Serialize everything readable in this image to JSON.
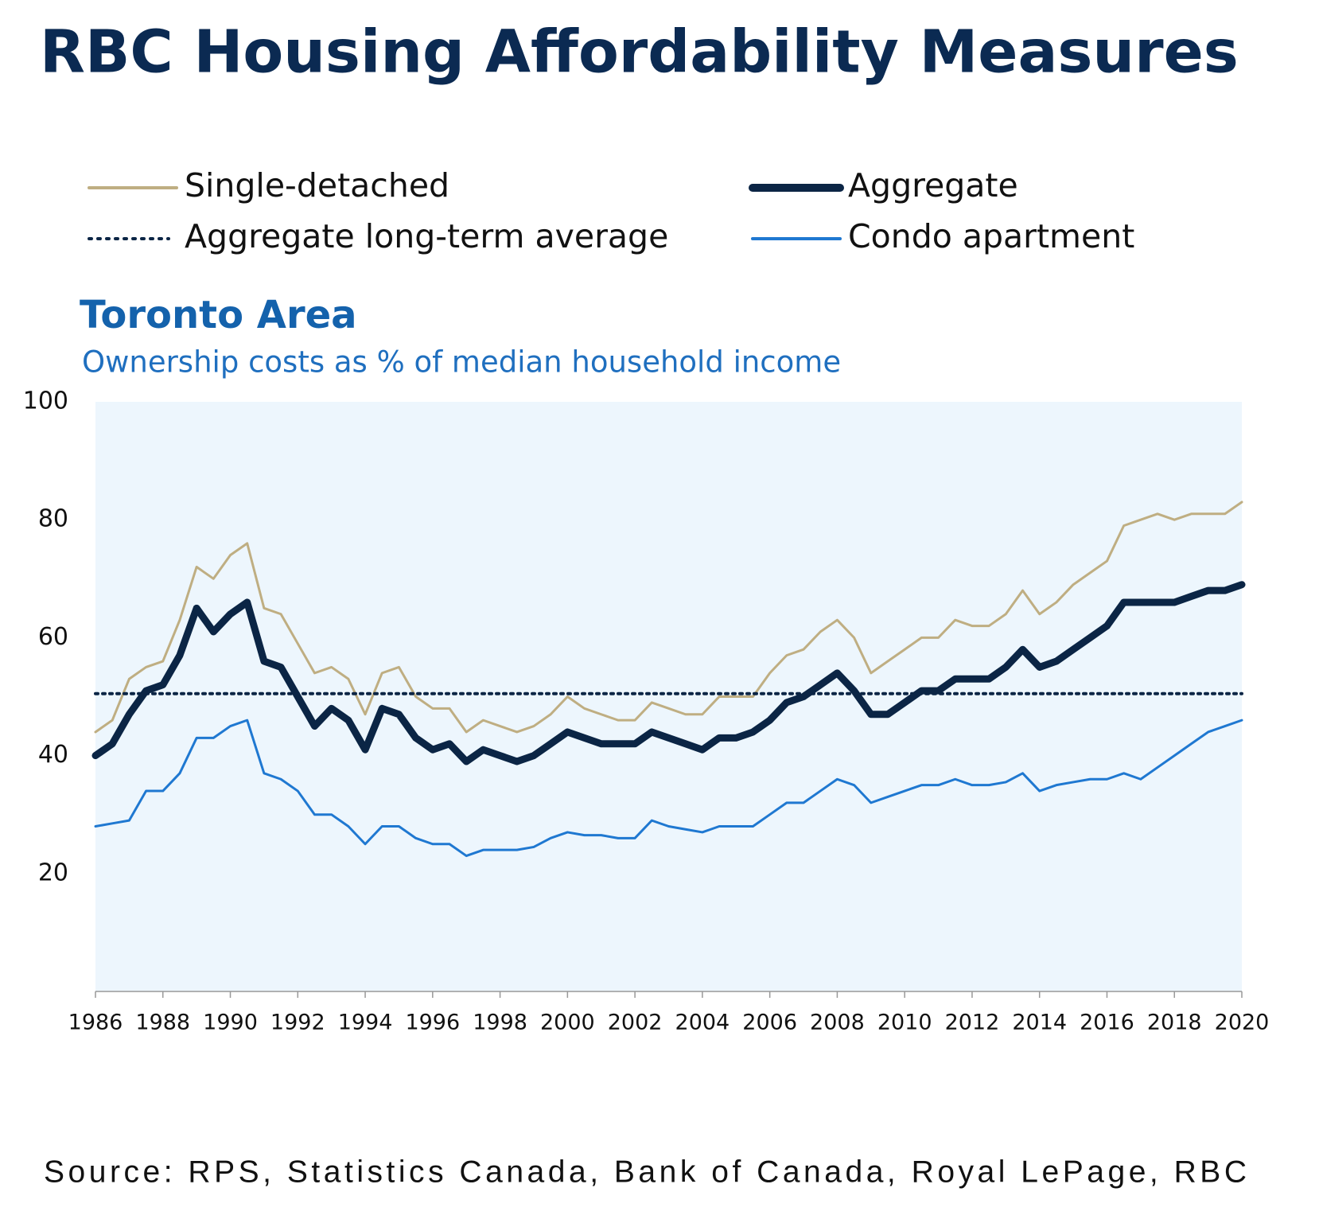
{
  "chart_data": {
    "type": "line",
    "title": "RBC Housing Affordability Measures",
    "subtitle": "Toronto Area",
    "y_axis_label": "Ownership costs as % of median household income",
    "source": "Source: RPS, Statistics Canada, Bank of Canada, Royal LePage, RBC",
    "x": [
      1986,
      1986.5,
      1987,
      1987.5,
      1988,
      1988.5,
      1989,
      1989.5,
      1990,
      1990.5,
      1991,
      1991.5,
      1992,
      1992.5,
      1993,
      1993.5,
      1994,
      1994.5,
      1995,
      1995.5,
      1996,
      1996.5,
      1997,
      1997.5,
      1998,
      1998.5,
      1999,
      1999.5,
      2000,
      2000.5,
      2001,
      2001.5,
      2002,
      2002.5,
      2003,
      2003.5,
      2004,
      2004.5,
      2005,
      2005.5,
      2006,
      2006.5,
      2007,
      2007.5,
      2008,
      2008.5,
      2009,
      2009.5,
      2010,
      2010.5,
      2011,
      2011.5,
      2012,
      2012.5,
      2013,
      2013.5,
      2014,
      2014.5,
      2015,
      2015.5,
      2016,
      2016.5,
      2017,
      2017.5,
      2018,
      2018.5,
      2019,
      2019.5,
      2020
    ],
    "series": [
      {
        "name": "Single-detached",
        "color": "#bfae82",
        "values": [
          44,
          46,
          53,
          55,
          56,
          63,
          72,
          70,
          74,
          76,
          65,
          64,
          59,
          54,
          55,
          53,
          47,
          54,
          55,
          50,
          48,
          48,
          44,
          46,
          45,
          44,
          45,
          47,
          50,
          48,
          47,
          46,
          46,
          49,
          48,
          47,
          47,
          50,
          50,
          50,
          54,
          57,
          58,
          61,
          63,
          60,
          54,
          56,
          58,
          60,
          60,
          63,
          62,
          62,
          64,
          68,
          64,
          66,
          69,
          71,
          73,
          79,
          80,
          81,
          80,
          81,
          81,
          81,
          83
        ]
      },
      {
        "name": "Condo apartment",
        "color": "#1f78d1",
        "values": [
          28,
          28.5,
          29,
          34,
          34,
          37,
          43,
          43,
          45,
          46,
          37,
          36,
          34,
          30,
          30,
          28,
          25,
          28,
          28,
          26,
          25,
          25,
          23,
          24,
          24,
          24,
          24.5,
          26,
          27,
          26.5,
          26.5,
          26,
          26,
          29,
          28,
          27.5,
          27,
          28,
          28,
          28,
          30,
          32,
          32,
          34,
          36,
          35,
          32,
          33,
          34,
          35,
          35,
          36,
          35,
          35,
          35.5,
          37,
          34,
          35,
          35.5,
          36,
          36,
          37,
          36,
          38,
          40,
          42,
          44,
          45,
          46
        ]
      },
      {
        "name": "Aggregate",
        "color": "#0b2545",
        "values": [
          40,
          42,
          47,
          51,
          52,
          57,
          65,
          61,
          64,
          66,
          56,
          55,
          50,
          45,
          48,
          46,
          41,
          48,
          47,
          43,
          41,
          42,
          39,
          41,
          40,
          39,
          40,
          42,
          44,
          43,
          42,
          42,
          42,
          44,
          43,
          42,
          41,
          43,
          43,
          44,
          46,
          49,
          50,
          52,
          54,
          51,
          47,
          47,
          49,
          51,
          51,
          53,
          53,
          53,
          55,
          58,
          55,
          56,
          58,
          60,
          62,
          66,
          66,
          66,
          66,
          67,
          68,
          68,
          69
        ]
      }
    ],
    "reference_lines": [
      {
        "name": "Aggregate long-term average",
        "value": 50.5,
        "color": "#0b2545",
        "style": "dotted"
      }
    ],
    "xlim": [
      1986,
      2020
    ],
    "xticks": [
      1986,
      1988,
      1990,
      1992,
      1994,
      1996,
      1998,
      2000,
      2002,
      2004,
      2006,
      2008,
      2010,
      2012,
      2014,
      2016,
      2018,
      2020
    ],
    "ylim": [
      0,
      100
    ],
    "yticks": [
      20,
      40,
      60,
      80,
      100
    ],
    "plot_background": "#edf6fd"
  }
}
